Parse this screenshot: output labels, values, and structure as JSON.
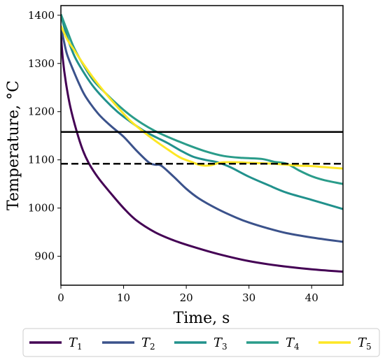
{
  "chart_data": {
    "type": "line",
    "xlabel": "Time, s",
    "ylabel": "Temperature, °C",
    "xlim": [
      0,
      45
    ],
    "ylim": [
      840,
      1420
    ],
    "xticks": [
      0,
      10,
      20,
      30,
      40
    ],
    "yticks": [
      900,
      1000,
      1100,
      1200,
      1300,
      1400
    ],
    "grid": false,
    "legend_position": "bottom",
    "hlines": [
      {
        "y": 1158,
        "style": "solid",
        "color": "#000000"
      },
      {
        "y": 1092,
        "style": "dashed",
        "color": "#000000"
      }
    ],
    "series": [
      {
        "name": "T",
        "subscript": "1",
        "color": "#440154",
        "x": [
          0,
          0.3,
          0.8,
          1.5,
          2.5,
          3.5,
          4.5,
          6,
          8,
          10,
          12,
          15,
          18,
          21,
          25,
          30,
          35,
          40,
          45
        ],
        "y": [
          1362,
          1310,
          1260,
          1210,
          1160,
          1120,
          1092,
          1062,
          1030,
          1000,
          975,
          950,
          933,
          920,
          905,
          890,
          880,
          873,
          868
        ]
      },
      {
        "name": "T",
        "subscript": "2",
        "color": "#3b528b",
        "x": [
          0,
          0.5,
          1,
          2,
          3,
          4,
          6,
          8,
          10,
          12,
          14,
          15,
          16,
          18,
          20,
          22,
          25,
          28,
          30,
          33,
          36,
          40,
          45
        ],
        "y": [
          1375,
          1345,
          1318,
          1285,
          1255,
          1230,
          1195,
          1170,
          1148,
          1120,
          1095,
          1090,
          1088,
          1065,
          1040,
          1020,
          998,
          980,
          970,
          958,
          948,
          939,
          930
        ]
      },
      {
        "name": "T",
        "subscript": "3",
        "color": "#21918c",
        "x": [
          0,
          1,
          2,
          3,
          5,
          7,
          9,
          11,
          13,
          15,
          17,
          19,
          21,
          23,
          25,
          27,
          30,
          33,
          36,
          40,
          45
        ],
        "y": [
          1400,
          1355,
          1320,
          1295,
          1255,
          1225,
          1200,
          1180,
          1162,
          1148,
          1135,
          1120,
          1107,
          1100,
          1095,
          1085,
          1065,
          1048,
          1032,
          1017,
          998
        ]
      },
      {
        "name": "T",
        "subscript": "4",
        "color": "#2a9c8a",
        "x": [
          0,
          1,
          2,
          3,
          5,
          7,
          9,
          11,
          13,
          15,
          17,
          20,
          23,
          26,
          29,
          32,
          34,
          36,
          38,
          40,
          42,
          45
        ],
        "y": [
          1402,
          1368,
          1335,
          1310,
          1268,
          1240,
          1215,
          1193,
          1175,
          1160,
          1148,
          1132,
          1118,
          1108,
          1104,
          1102,
          1096,
          1092,
          1078,
          1066,
          1058,
          1050
        ]
      },
      {
        "name": "T",
        "subscript": "5",
        "color": "#fde725",
        "x": [
          0,
          1,
          2,
          3,
          5,
          7,
          9,
          11,
          13,
          15,
          17,
          19,
          21,
          22,
          23,
          24,
          25,
          26,
          28,
          30,
          32,
          34,
          36,
          38,
          40,
          42,
          45
        ],
        "y": [
          1378,
          1350,
          1330,
          1310,
          1273,
          1240,
          1210,
          1182,
          1160,
          1140,
          1122,
          1105,
          1095,
          1090,
          1088,
          1089,
          1093,
          1095,
          1095,
          1094,
          1093,
          1092,
          1090,
          1088,
          1087,
          1085,
          1082
        ]
      }
    ]
  }
}
